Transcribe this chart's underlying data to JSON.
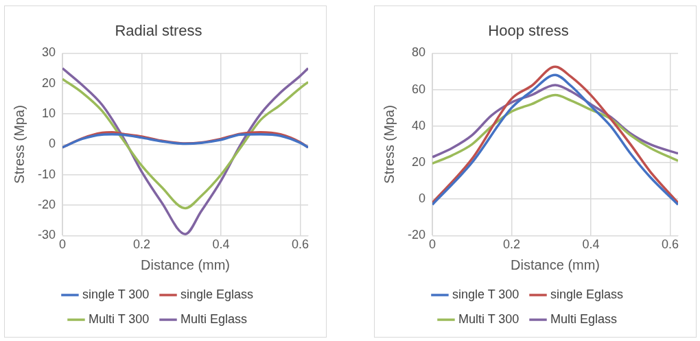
{
  "chart_data": [
    {
      "type": "line",
      "title": "Radial stress",
      "xlabel": "Distance (mm)",
      "ylabel": "Stress (Mpa)",
      "xlim": [
        0,
        0.62
      ],
      "xticks": [
        0,
        0.2,
        0.4,
        0.6
      ],
      "ylim": [
        -30,
        30
      ],
      "yticks": [
        -30,
        -20,
        -10,
        0,
        10,
        20,
        30
      ],
      "grid": true,
      "legend": "bottom",
      "marker": "none",
      "series": [
        {
          "name": "single T 300",
          "color": "#4472c4",
          "x": [
            0,
            0.05,
            0.1,
            0.125,
            0.15,
            0.2,
            0.25,
            0.31,
            0.35,
            0.4,
            0.45,
            0.5,
            0.55,
            0.6,
            0.62
          ],
          "values": [
            -1,
            1.8,
            3.2,
            3.3,
            3.2,
            2.2,
            1,
            0.2,
            0.5,
            1.5,
            3.2,
            3.3,
            2.8,
            0.5,
            -1
          ]
        },
        {
          "name": "single Eglass",
          "color": "#c0504d",
          "x": [
            0,
            0.05,
            0.1,
            0.125,
            0.15,
            0.2,
            0.25,
            0.31,
            0.35,
            0.4,
            0.45,
            0.5,
            0.55,
            0.6,
            0.62
          ],
          "values": [
            -1,
            2,
            3.8,
            4,
            3.5,
            2.6,
            1.2,
            0.3,
            0.6,
            1.8,
            3.5,
            4,
            3.3,
            0.7,
            -1
          ]
        },
        {
          "name": "Multi T 300",
          "color": "#9bbb59",
          "x": [
            0,
            0.05,
            0.1,
            0.15,
            0.2,
            0.25,
            0.31,
            0.35,
            0.4,
            0.45,
            0.5,
            0.55,
            0.6,
            0.62
          ],
          "values": [
            21.5,
            17,
            11,
            2,
            -7,
            -14,
            -21,
            -17,
            -10,
            -1,
            8,
            13,
            18.5,
            20.5
          ]
        },
        {
          "name": "Multi Eglass",
          "color": "#8064a2",
          "x": [
            0,
            0.05,
            0.1,
            0.15,
            0.2,
            0.25,
            0.31,
            0.35,
            0.4,
            0.45,
            0.5,
            0.55,
            0.6,
            0.62
          ],
          "values": [
            25,
            19.5,
            13,
            3,
            -9,
            -19,
            -29.5,
            -22,
            -12,
            0,
            10,
            17,
            22.5,
            25
          ]
        }
      ]
    },
    {
      "type": "line",
      "title": "Hoop stress",
      "xlabel": "Distance (mm)",
      "ylabel": "Stress (Mpa)",
      "xlim": [
        0,
        0.62
      ],
      "xticks": [
        0,
        0.2,
        0.4,
        0.6
      ],
      "ylim": [
        -20,
        80
      ],
      "yticks": [
        -20,
        0,
        20,
        40,
        60,
        80
      ],
      "grid": true,
      "legend": "bottom",
      "marker": "none",
      "series": [
        {
          "name": "single T 300",
          "color": "#4472c4",
          "x": [
            0,
            0.1,
            0.2,
            0.25,
            0.31,
            0.35,
            0.4,
            0.45,
            0.5,
            0.55,
            0.62
          ],
          "values": [
            -3,
            20,
            50,
            59,
            68,
            62,
            51,
            40,
            25,
            12,
            -3
          ]
        },
        {
          "name": "single Eglass",
          "color": "#c0504d",
          "x": [
            0,
            0.1,
            0.2,
            0.25,
            0.31,
            0.35,
            0.4,
            0.45,
            0.5,
            0.55,
            0.62
          ],
          "values": [
            -2,
            22,
            55,
            62,
            72.5,
            67,
            57,
            44,
            30,
            15,
            -2
          ]
        },
        {
          "name": "Multi T 300",
          "color": "#9bbb59",
          "x": [
            0,
            0.05,
            0.1,
            0.15,
            0.2,
            0.25,
            0.31,
            0.35,
            0.4,
            0.45,
            0.5,
            0.55,
            0.62
          ],
          "values": [
            19.5,
            24,
            30,
            40,
            48,
            52,
            57,
            54,
            49,
            44,
            35,
            28,
            21
          ]
        },
        {
          "name": "Multi Eglass",
          "color": "#8064a2",
          "x": [
            0,
            0.05,
            0.1,
            0.15,
            0.2,
            0.25,
            0.31,
            0.35,
            0.4,
            0.45,
            0.5,
            0.55,
            0.62
          ],
          "values": [
            23,
            28,
            35,
            46,
            53,
            57,
            62.5,
            59,
            52,
            45,
            36,
            30,
            25
          ]
        }
      ]
    }
  ]
}
